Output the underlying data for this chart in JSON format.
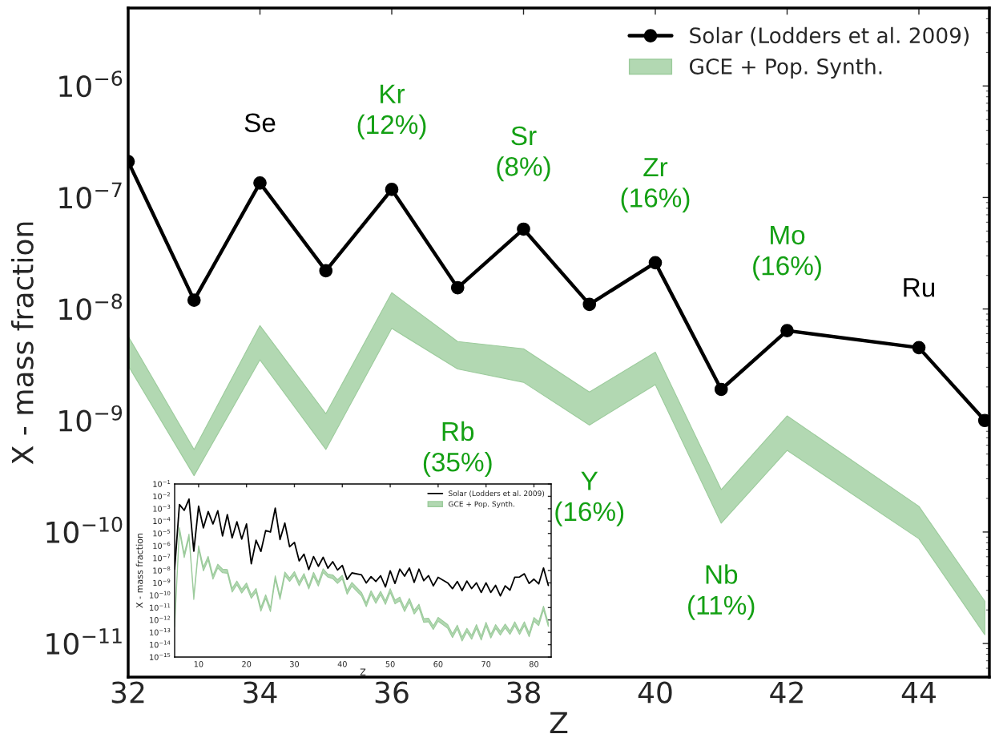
{
  "chart_data": [
    {
      "type": "line",
      "xlabel": "Z",
      "ylabel": "X - mass fraction",
      "log": "y",
      "xlim": [
        32,
        45.07
      ],
      "ylim": [
        5e-12,
        5e-06
      ],
      "xticks": [
        32,
        34,
        36,
        38,
        40,
        42,
        44
      ],
      "yticks": [
        {
          "value": 1e-11,
          "label": "10$^{−11}$"
        },
        {
          "value": 1e-10,
          "label": "10$^{−10}$"
        },
        {
          "value": 1e-09,
          "label": "10$^{−9}$"
        },
        {
          "value": 1e-08,
          "label": "10$^{−8}$"
        },
        {
          "value": 1e-07,
          "label": "10$^{−7}$"
        },
        {
          "value": 1e-06,
          "label": "10$^{−6}$"
        }
      ],
      "grid": false,
      "legend": "top right",
      "marker": "circle",
      "line_style": "solid",
      "series": [
        {
          "name": "Solar (Lodders et al. 2009)",
          "color": "#000000",
          "x": [
            32,
            33,
            34,
            35,
            36,
            37,
            38,
            39,
            40,
            41,
            42,
            44,
            45
          ],
          "values": [
            2.1e-07,
            1.2e-08,
            1.35e-07,
            2.2e-08,
            1.18e-07,
            1.55e-08,
            5.2e-08,
            1.1e-08,
            2.6e-08,
            1.9e-09,
            6.4e-09,
            4.5e-09,
            1e-09
          ]
        },
        {
          "name": "GCE + Pop. Synth.",
          "type": "area",
          "color": "#b2d8b2",
          "x": [
            32,
            33,
            34,
            35,
            36,
            37,
            38,
            39,
            40,
            41,
            42,
            44,
            45
          ],
          "values": [
            null,
            null,
            null,
            null,
            null,
            null,
            null,
            null,
            null,
            null,
            null,
            null,
            null
          ],
          "upper": [
            5.7e-09,
            5.5e-10,
            7.1e-09,
            1.15e-09,
            1.4e-08,
            5.1e-09,
            4.4e-09,
            1.8e-09,
            4.1e-09,
            2.4e-10,
            1.1e-09,
            1.7e-10,
            2.4e-11
          ],
          "lower": [
            3.1e-09,
            3.2e-10,
            3.5e-09,
            5.5e-10,
            6.7e-09,
            2.9e-09,
            2.2e-09,
            9.1e-10,
            2.1e-09,
            1.2e-10,
            5.4e-10,
            8.7e-11,
            1.2e-11
          ]
        }
      ],
      "annotations": [
        {
          "text": "Se",
          "x": 34,
          "y": 1.35e-07
        },
        {
          "text": "Kr\n(12%)",
          "x": 36,
          "y": 1.18e-07
        },
        {
          "text": "Sr\n(8%)",
          "x": 38,
          "y": 5.2e-08
        },
        {
          "text": "Zr\n(16%)",
          "x": 40,
          "y": 2.6e-08
        },
        {
          "text": "Mo\n(16%)",
          "x": 42,
          "y": 6.4e-09
        },
        {
          "text": "Ru",
          "x": 44,
          "y": 4.5e-09
        },
        {
          "text": "Rb\n(35%)",
          "x": 37,
          "y": 2.9e-09
        },
        {
          "text": "Y\n(16%)",
          "x": 39,
          "y": 9.1e-10
        },
        {
          "text": "Nb\n(11%)",
          "x": 41,
          "y": 1.2e-10
        }
      ]
    },
    {
      "type": "line",
      "xlabel": "Z",
      "ylabel": "X - mass fraction",
      "log": "y",
      "xlim": [
        5,
        83.6
      ],
      "ylim": [
        1e-15,
        0.1
      ],
      "xticks": [
        10,
        20,
        30,
        40,
        50,
        60,
        70,
        80
      ],
      "yticks": [
        {
          "value": 1e-15,
          "label": "10$^{−15}$"
        },
        {
          "value": 1e-14,
          "label": "10$^{−14}$"
        },
        {
          "value": 1e-13,
          "label": "10$^{−13}$"
        },
        {
          "value": 1e-12,
          "label": "10$^{−12}$"
        },
        {
          "value": 1e-11,
          "label": "10$^{−11}$"
        },
        {
          "value": 1e-10,
          "label": "10$^{−10}$"
        },
        {
          "value": 1e-09,
          "label": "10$^{−9}$"
        },
        {
          "value": 1e-08,
          "label": "10$^{−8}$"
        },
        {
          "value": 1e-07,
          "label": "10$^{−7}$"
        },
        {
          "value": 1e-06,
          "label": "10$^{−6}$"
        },
        {
          "value": 1e-05,
          "label": "10$^{−5}$"
        },
        {
          "value": 0.0001,
          "label": "10$^{−4}$"
        },
        {
          "value": 0.001,
          "label": "10$^{−3}$"
        },
        {
          "value": 0.01,
          "label": "10$^{−2}$"
        },
        {
          "value": 0.1,
          "label": "10$^{−1}$"
        }
      ],
      "grid": false,
      "legend": "top right",
      "line_style": "solid",
      "series": [
        {
          "name": "Solar (Lodders et al. 2009)",
          "color": "#000000",
          "x": [
            5,
            6,
            7,
            8,
            9,
            10,
            11,
            12,
            13,
            14,
            15,
            16,
            17,
            18,
            19,
            20,
            21,
            22,
            23,
            24,
            25,
            26,
            27,
            28,
            29,
            30,
            31,
            32,
            33,
            34,
            35,
            36,
            37,
            38,
            39,
            40,
            41,
            42,
            44,
            45,
            46,
            47,
            48,
            49,
            50,
            51,
            52,
            53,
            54,
            55,
            56,
            57,
            58,
            59,
            60,
            62,
            63,
            64,
            65,
            66,
            67,
            68,
            69,
            70,
            71,
            72,
            73,
            74,
            75,
            76,
            77,
            78,
            79,
            80,
            81,
            82,
            83
          ],
          "values": [
            1.3e-08,
            0.0022,
            0.00074,
            0.006,
            3.7e-07,
            0.0016,
            2.8e-05,
            0.00059,
            5.8e-05,
            0.00068,
            6.2e-06,
            0.00033,
            4.4e-06,
            8.7e-05,
            3.5e-06,
            5.8e-05,
            3.5e-08,
            2.8e-06,
            3.5e-07,
            1.7e-05,
            1.3e-05,
            0.0011,
            3.2e-06,
            6.9e-05,
            8.3e-07,
            1.9e-06,
            6e-08,
            2.1e-07,
            1.2e-08,
            1.35e-07,
            2.2e-08,
            1.18e-07,
            1.55e-08,
            5.2e-08,
            1.1e-08,
            2.6e-08,
            1.9e-09,
            6.4e-09,
            4.5e-09,
            1e-09,
            3.2e-09,
            1.3e-09,
            3.8e-09,
            4.7e-10,
            9.5e-09,
            9.1e-10,
            1.3e-08,
            3.5e-09,
            1.6e-08,
            1.1e-09,
            1.3e-08,
            1.5e-09,
            3.8e-09,
            5.8e-10,
            2.8e-09,
            1e-09,
            3.4e-10,
            1.3e-09,
            2.4e-10,
            1.4e-09,
            3.5e-10,
            1e-09,
            1.7e-10,
            1e-09,
            1.7e-10,
            6.3e-10,
            8.9e-11,
            5.8e-10,
            2.6e-10,
            2.9e-09,
            3e-09,
            5.4e-09,
            9.1e-10,
            2e-09,
            8.3e-10,
            1.6e-08,
            6.3e-10
          ]
        },
        {
          "name": "GCE + Pop. Synth.",
          "type": "area",
          "color": "#b2d8b2",
          "x": [
            5,
            6,
            7,
            8,
            9,
            10,
            11,
            12,
            13,
            14,
            15,
            16,
            17,
            18,
            19,
            20,
            21,
            22,
            23,
            24,
            25,
            26,
            27,
            28,
            29,
            30,
            31,
            32,
            33,
            34,
            35,
            36,
            37,
            38,
            39,
            40,
            41,
            42,
            44,
            45,
            46,
            47,
            48,
            49,
            50,
            51,
            52,
            53,
            54,
            55,
            56,
            57,
            58,
            59,
            60,
            62,
            63,
            64,
            65,
            66,
            67,
            68,
            69,
            70,
            71,
            72,
            73,
            74,
            75,
            76,
            77,
            78,
            79,
            80,
            81,
            82,
            83
          ],
          "values": [
            null,
            null,
            null,
            null,
            null,
            null,
            null,
            null,
            null,
            null,
            null,
            null,
            null,
            null,
            null,
            null,
            null,
            null,
            null,
            null,
            null,
            null,
            null,
            null,
            null,
            null,
            null,
            null,
            null,
            null,
            null,
            null,
            null,
            null,
            null,
            null,
            null,
            null,
            null,
            null,
            null,
            null,
            null,
            null,
            null,
            null,
            null,
            null,
            null,
            null,
            null,
            null,
            null,
            null,
            null,
            null,
            null,
            null,
            null,
            null,
            null,
            null,
            null,
            null,
            null,
            null,
            null,
            null,
            null,
            null,
            null,
            null,
            null,
            null,
            null,
            null,
            null
          ],
          "upper": [
            5.6e-13,
            3e-05,
            2.2e-07,
            8.9e-06,
            8.9e-11,
            1e-06,
            1.9e-08,
            1.4e-07,
            3.9e-09,
            3.2e-08,
            1.3e-08,
            1.2e-08,
            3.6e-10,
            1.4e-09,
            3.1e-10,
            9.8e-10,
            1.1e-10,
            3.6e-10,
            1e-11,
            1.1e-10,
            9.5e-12,
            3.7e-09,
            8.9e-11,
            7.6e-09,
            2.5e-09,
            8.3e-09,
            1.2e-09,
            5.7e-09,
            5.5e-10,
            7.1e-09,
            1.15e-09,
            1.4e-08,
            5.1e-09,
            4.4e-09,
            1.8e-09,
            4.1e-09,
            2.4e-10,
            1.1e-09,
            1.7e-10,
            2.4e-11,
            2.3e-10,
            4.5e-11,
            2.1e-10,
            3.6e-11,
            3.4e-10,
            4e-11,
            7.1e-11,
            9.5e-12,
            5.6e-11,
            6e-12,
            1.9e-11,
            1.3e-12,
            1.4e-12,
            3.3e-13,
            1.6e-12,
            4.2e-13,
            7.6e-14,
            3.8e-13,
            4.1e-14,
            2.1e-13,
            5.6e-14,
            4.2e-13,
            4.9e-14,
            6.5e-13,
            6.9e-14,
            4.2e-13,
            1.2e-13,
            4.6e-13,
            1.3e-13,
            7.1e-13,
            1.3e-13,
            7.1e-13,
            8.7e-14,
            1.6e-12,
            7.1e-13,
            1.3e-11,
            5.9e-13
          ],
          "lower": [
            2.8e-13,
            1.5e-05,
            1.1e-07,
            4.5e-06,
            4.5e-11,
            5.1e-07,
            9.3e-09,
            7.1e-08,
            2e-09,
            1.6e-08,
            6.6e-09,
            6e-09,
            1.8e-10,
            7.1e-10,
            1.5e-10,
            4.9e-10,
            5.6e-11,
            1.8e-10,
            5.1e-12,
            5.6e-11,
            4.8e-12,
            1.9e-09,
            4.5e-11,
            3.8e-09,
            1.3e-09,
            4.2e-09,
            5.9e-10,
            3.1e-09,
            3.2e-10,
            3.5e-09,
            5.5e-10,
            6.7e-09,
            2.9e-09,
            2.2e-09,
            9.1e-10,
            2.1e-09,
            1.2e-10,
            5.4e-10,
            8.7e-11,
            1.2e-11,
            1.2e-10,
            2.2e-11,
            1.1e-10,
            1.8e-11,
            1.7e-10,
            2e-11,
            3.5e-11,
            4.8e-12,
            2.8e-11,
            3e-12,
            9.3e-12,
            6.3e-13,
            7.2e-13,
            1.7e-13,
            7.9e-13,
            2.1e-13,
            3.8e-14,
            1.9e-13,
            2e-14,
            1.1e-13,
            2.8e-14,
            2.1e-13,
            2.4e-14,
            3.3e-13,
            3.5e-14,
            2.1e-13,
            6e-14,
            2.3e-13,
            6.8e-14,
            3.5e-13,
            6.8e-14,
            3.5e-13,
            4.4e-14,
            7.9e-13,
            3.5e-13,
            6.7e-12,
            3e-13
          ]
        }
      ]
    }
  ]
}
